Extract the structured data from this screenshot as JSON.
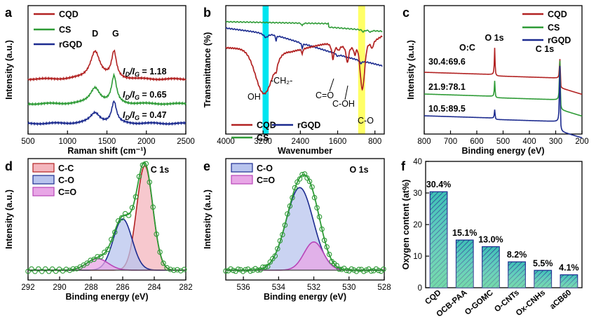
{
  "colors": {
    "cqd": "#b22222",
    "cs": "#2e9b36",
    "rgqd": "#1c2b8f",
    "cyan_band": "#00e5f0",
    "yellow_band": "#ffff66",
    "cc_fill": "#f4b6bd",
    "co_fill": "#b8c4ee",
    "c_o_fill": "#e8a6e6",
    "bar_fill": "#3cc0b4"
  },
  "panels": {
    "a": {
      "label": "a"
    },
    "b": {
      "label": "b"
    },
    "c": {
      "label": "c"
    },
    "d": {
      "label": "d"
    },
    "e": {
      "label": "e"
    },
    "f": {
      "label": "f"
    }
  },
  "chart_data": [
    {
      "id": "a",
      "type": "line",
      "xlabel": "Raman shift (cm⁻¹)",
      "ylabel": "Intensity (a.u.)",
      "xlim": [
        500,
        2500
      ],
      "xticks": [
        "500",
        "1000",
        "1500",
        "2000",
        "2500"
      ],
      "legend": [
        "CQD",
        "CS",
        "rGQD"
      ],
      "peak_labels": [
        "D",
        "G"
      ],
      "series": [
        {
          "name": "CQD",
          "peaks_x": [
            1350,
            1590
          ],
          "ratio_label": "Iₔ/I₉ = 1.18",
          "ratio_value": "= 1.18"
        },
        {
          "name": "CS",
          "peaks_x": [
            1350,
            1590
          ],
          "ratio_value": "= 0.65"
        },
        {
          "name": "rGQD",
          "peaks_x": [
            1350,
            1590
          ],
          "ratio_value": "= 0.47"
        }
      ],
      "ratio_prefix": "I",
      "ratio_sub_d": "D",
      "ratio_sub_g": "G"
    },
    {
      "id": "b",
      "type": "line",
      "xlabel": "Wavenumber",
      "ylabel": "Transmittance (%)",
      "xlim": [
        4000,
        600
      ],
      "xticks": [
        "4000",
        "3200",
        "2400",
        "1600",
        "800"
      ],
      "legend": [
        "CQD",
        "CS",
        "rGQD"
      ],
      "annotations": [
        "OH",
        "-CH₂-",
        "C=O",
        "C-OH",
        "C-O"
      ],
      "highlight_bands": [
        3150,
        1080
      ]
    },
    {
      "id": "c",
      "type": "line",
      "xlabel": "Binding energy (eV)",
      "ylabel": "Intensity (a.u.)",
      "xlim": [
        800,
        200
      ],
      "xticks": [
        "800",
        "700",
        "600",
        "500",
        "400",
        "300",
        "200"
      ],
      "legend": [
        "CQD",
        "CS",
        "rGQD"
      ],
      "annotations": [
        "O 1s",
        "C 1s"
      ],
      "ratio_header": "O:C",
      "series": [
        {
          "name": "CQD",
          "oc_ratio": "30.4:69.6"
        },
        {
          "name": "CS",
          "oc_ratio": "21.9:78.1"
        },
        {
          "name": "rGQD",
          "oc_ratio": "10.5:89.5"
        }
      ]
    },
    {
      "id": "d",
      "type": "line",
      "title": "C 1s",
      "xlabel": "Binding energy (eV)",
      "ylabel": "Intensity (a.u.)",
      "xlim": [
        292,
        282
      ],
      "xticks": [
        "292",
        "290",
        "288",
        "286",
        "284",
        "282"
      ],
      "legend": [
        "C-C",
        "C-O",
        "C=O"
      ],
      "components": [
        {
          "name": "C-C",
          "center": 284.6,
          "height": 1.0,
          "fwhm": 1.2
        },
        {
          "name": "C-O",
          "center": 286.0,
          "height": 0.49,
          "fwhm": 1.4
        },
        {
          "name": "C=O",
          "center": 287.6,
          "height": 0.11,
          "fwhm": 1.6
        }
      ]
    },
    {
      "id": "e",
      "type": "line",
      "title": "O 1s",
      "xlabel": "Binding energy (eV)",
      "ylabel": "Intensity (a.u.)",
      "xlim": [
        537,
        528
      ],
      "xticks": [
        "536",
        "534",
        "532",
        "530",
        "528"
      ],
      "legend": [
        "C-O",
        "C=O"
      ],
      "components": [
        {
          "name": "C-O",
          "center": 532.8,
          "height": 0.79,
          "fwhm": 1.8
        },
        {
          "name": "C=O",
          "center": 532.0,
          "height": 0.27,
          "fwhm": 1.3
        }
      ]
    },
    {
      "id": "f",
      "type": "bar",
      "ylabel": "Oxygen content (at%)",
      "ylim": [
        0,
        40
      ],
      "yticks": [
        "0",
        "10",
        "20",
        "30",
        "40"
      ],
      "categories": [
        "CQD",
        "OCB-PAA",
        "O-GOMC",
        "O-CNTs",
        "Ox-CNHs",
        "aCB60"
      ],
      "values": [
        30.4,
        15.1,
        13.0,
        8.2,
        5.5,
        4.1
      ],
      "value_labels": [
        "30.4%",
        "15.1%",
        "13.0%",
        "8.2%",
        "5.5%",
        "4.1%"
      ]
    }
  ]
}
